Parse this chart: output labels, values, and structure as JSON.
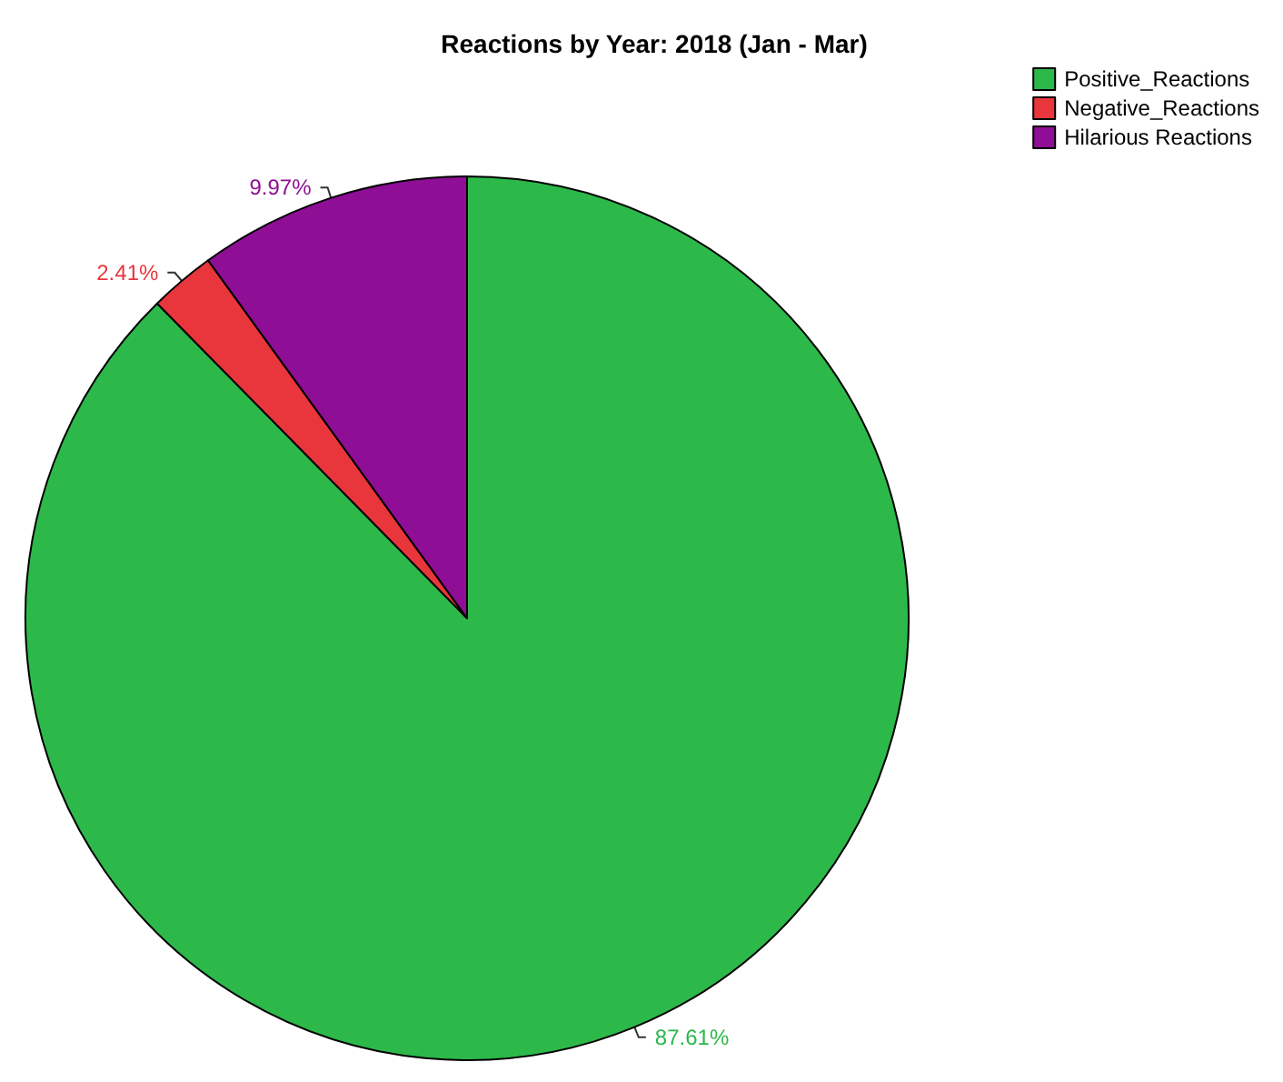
{
  "chart_data": {
    "type": "pie",
    "title": "Reactions by Year: 2018 (Jan - Mar)",
    "categories": [
      "Positive_Reactions",
      "Negative_Reactions",
      "Hilarious Reactions"
    ],
    "values": [
      87.61,
      2.41,
      9.97
    ],
    "colors": [
      "#2db84a",
      "#e8363c",
      "#8e0e96"
    ],
    "value_labels": [
      "87.61%",
      "2.41%",
      "9.97%"
    ],
    "legend": "top right"
  }
}
